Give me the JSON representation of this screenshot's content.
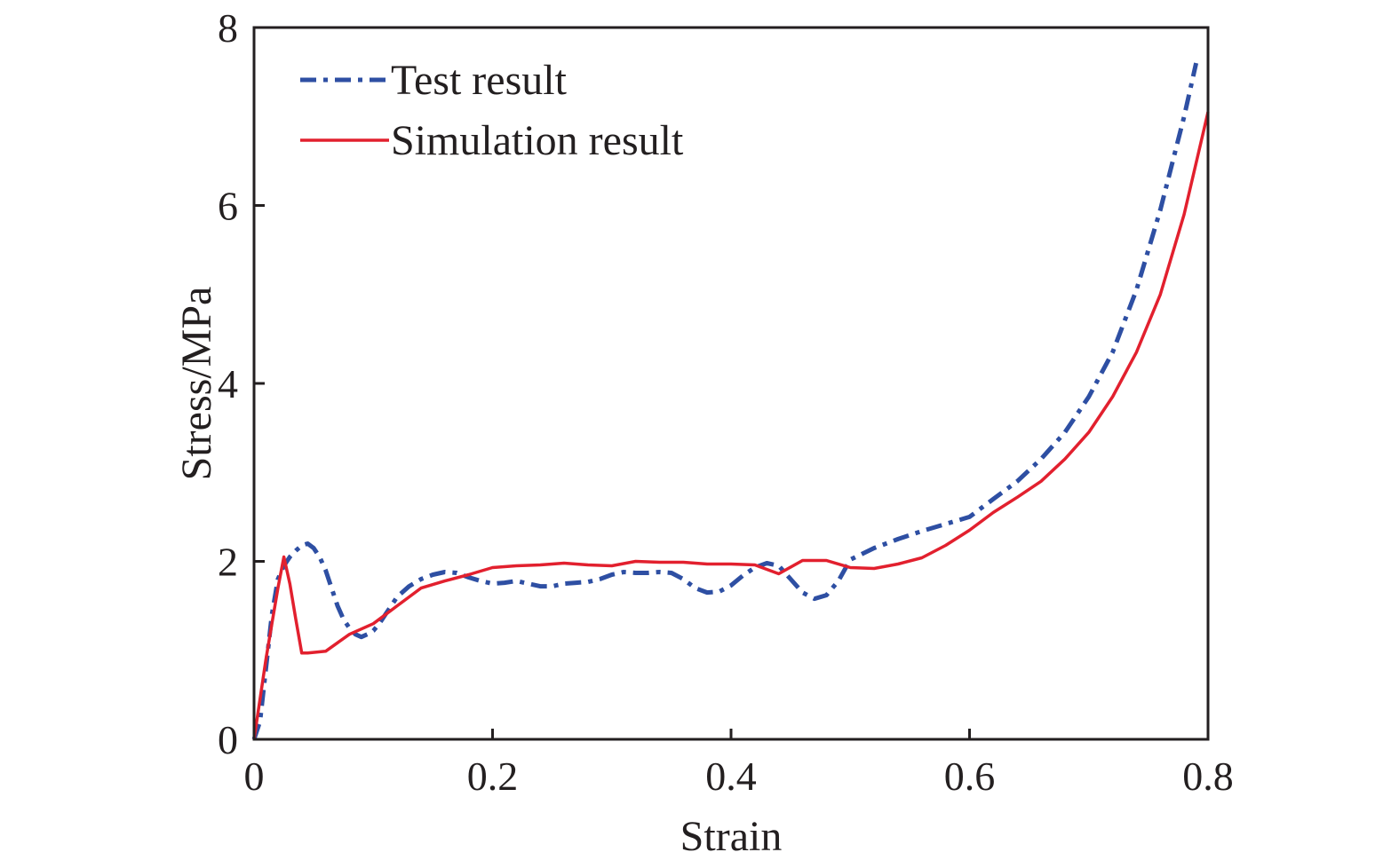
{
  "chart_data": {
    "type": "line",
    "xlabel": "Strain",
    "ylabel": "Stress/MPa",
    "xlim": [
      0,
      0.8
    ],
    "ylim": [
      0,
      8
    ],
    "xticks": [
      0,
      0.2,
      0.4,
      0.6,
      0.8
    ],
    "xtick_labels": [
      "0",
      "0.2",
      "0.4",
      "0.6",
      "0.8"
    ],
    "yticks": [
      0,
      2,
      4,
      6,
      8
    ],
    "ytick_labels": [
      "0",
      "2",
      "4",
      "6",
      "8"
    ],
    "grid": false,
    "legend_position": "top-left",
    "series": [
      {
        "name": "Test result",
        "color": "#2e4fa3",
        "style": "dash-dot",
        "x": [
          0,
          0.005,
          0.01,
          0.015,
          0.02,
          0.025,
          0.03,
          0.035,
          0.04,
          0.045,
          0.05,
          0.055,
          0.06,
          0.065,
          0.07,
          0.075,
          0.08,
          0.085,
          0.09,
          0.095,
          0.1,
          0.105,
          0.11,
          0.115,
          0.12,
          0.13,
          0.14,
          0.15,
          0.16,
          0.17,
          0.18,
          0.19,
          0.2,
          0.21,
          0.22,
          0.23,
          0.24,
          0.25,
          0.26,
          0.27,
          0.28,
          0.29,
          0.3,
          0.31,
          0.32,
          0.33,
          0.34,
          0.35,
          0.36,
          0.37,
          0.38,
          0.39,
          0.4,
          0.41,
          0.42,
          0.43,
          0.44,
          0.45,
          0.46,
          0.47,
          0.48,
          0.49,
          0.5,
          0.52,
          0.54,
          0.56,
          0.58,
          0.6,
          0.62,
          0.64,
          0.66,
          0.68,
          0.7,
          0.72,
          0.74,
          0.76,
          0.78,
          0.79
        ],
        "y": [
          0,
          0.2,
          0.8,
          1.4,
          1.8,
          1.95,
          2.05,
          2.12,
          2.18,
          2.2,
          2.15,
          2.05,
          1.9,
          1.7,
          1.5,
          1.35,
          1.25,
          1.18,
          1.15,
          1.18,
          1.22,
          1.3,
          1.4,
          1.5,
          1.6,
          1.72,
          1.8,
          1.85,
          1.88,
          1.87,
          1.82,
          1.78,
          1.75,
          1.76,
          1.78,
          1.75,
          1.72,
          1.72,
          1.75,
          1.76,
          1.77,
          1.8,
          1.85,
          1.88,
          1.87,
          1.87,
          1.88,
          1.87,
          1.8,
          1.7,
          1.65,
          1.66,
          1.73,
          1.84,
          1.93,
          1.98,
          1.95,
          1.8,
          1.65,
          1.58,
          1.62,
          1.78,
          2.02,
          2.15,
          2.25,
          2.34,
          2.42,
          2.5,
          2.7,
          2.9,
          3.15,
          3.45,
          3.85,
          4.35,
          5.05,
          5.95,
          7.0,
          7.6
        ]
      },
      {
        "name": "Simulation result",
        "color": "#e2202e",
        "style": "solid",
        "x": [
          0,
          0.01,
          0.015,
          0.02,
          0.025,
          0.03,
          0.035,
          0.04,
          0.045,
          0.06,
          0.08,
          0.1,
          0.12,
          0.14,
          0.16,
          0.18,
          0.2,
          0.22,
          0.24,
          0.26,
          0.28,
          0.3,
          0.32,
          0.34,
          0.36,
          0.38,
          0.4,
          0.42,
          0.44,
          0.46,
          0.48,
          0.5,
          0.52,
          0.54,
          0.56,
          0.58,
          0.6,
          0.62,
          0.64,
          0.66,
          0.68,
          0.7,
          0.72,
          0.74,
          0.76,
          0.78,
          0.8
        ],
        "y": [
          0,
          0.9,
          1.3,
          1.7,
          2.05,
          1.75,
          1.35,
          0.97,
          0.97,
          0.99,
          1.18,
          1.3,
          1.5,
          1.7,
          1.78,
          1.85,
          1.93,
          1.95,
          1.96,
          1.98,
          1.96,
          1.95,
          2.0,
          1.99,
          1.99,
          1.97,
          1.97,
          1.96,
          1.86,
          2.01,
          2.01,
          1.93,
          1.92,
          1.97,
          2.04,
          2.18,
          2.35,
          2.55,
          2.72,
          2.9,
          3.15,
          3.45,
          3.85,
          4.35,
          5.0,
          5.9,
          7.05
        ]
      }
    ]
  }
}
